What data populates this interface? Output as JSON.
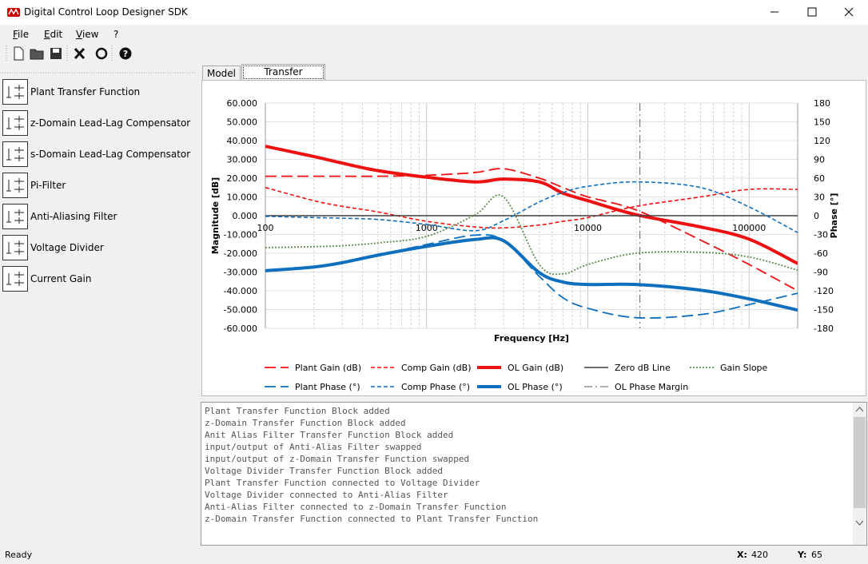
{
  "window": {
    "title": "Digital Control Loop Designer SDK"
  },
  "menu": [
    "File",
    "Edit",
    "View",
    "?"
  ],
  "blocks": [
    "Plant Transfer Function",
    "z-Domain Lead-Lag Compensator",
    "s-Domain Lead-Lag Compensator",
    "Pi-Filter",
    "Anti-Aliasing Filter",
    "Voltage Divider",
    "Current Gain"
  ],
  "tabs": [
    "Model",
    "Transfer Function"
  ],
  "chart_data": {
    "type": "line",
    "xlabel": "Frequency [Hz]",
    "ylabel": "Magnitude [dB]",
    "y2label": "Phase [°]",
    "xscale": "log",
    "xlim": [
      100,
      200000
    ],
    "xticks": [
      100,
      1000,
      10000,
      100000
    ],
    "x_minor_ticks": [
      200,
      300,
      400,
      500,
      600,
      700,
      800,
      900,
      2000,
      3000,
      4000,
      5000,
      6000,
      7000,
      8000,
      9000,
      20000,
      30000,
      40000,
      50000,
      60000,
      70000,
      80000,
      90000
    ],
    "ylim": [
      -60,
      60
    ],
    "yticks": [
      {
        "value": 60,
        "label": "60.000"
      },
      {
        "value": 50,
        "label": "50.000"
      },
      {
        "value": 40,
        "label": "40.000"
      },
      {
        "value": 30,
        "label": "30.000"
      },
      {
        "value": 20,
        "label": "20.000"
      },
      {
        "value": 10,
        "label": "10.000"
      },
      {
        "value": 0,
        "label": "0.000"
      },
      {
        "value": -10,
        "label": "-10.000"
      },
      {
        "value": -20,
        "label": "-20.000"
      },
      {
        "value": -30,
        "label": "-30.000"
      },
      {
        "value": -40,
        "label": "-40.000"
      },
      {
        "value": -50,
        "label": "-50.000"
      },
      {
        "value": -60,
        "label": "-60.000"
      }
    ],
    "y2lim": [
      -180,
      180
    ],
    "y2ticks": [
      180,
      150,
      120,
      90,
      60,
      30,
      0,
      -30,
      -60,
      -90,
      -120,
      -150,
      -180
    ],
    "grid": true,
    "x": [
      100,
      200,
      300,
      500,
      1000,
      2000,
      3000,
      5000,
      7000,
      10000,
      20000,
      50000,
      100000,
      200000
    ],
    "series": [
      {
        "name": "Plant Gain (dB)",
        "color": "#ee1111",
        "line_style": "long-dash",
        "values": [
          21,
          21,
          21,
          21,
          21.5,
          23,
          25,
          20,
          15,
          10,
          3,
          -13,
          -26,
          -40
        ]
      },
      {
        "name": "Comp Gain (dB)",
        "color": "#ee1111",
        "line_style": "short-dash",
        "values": [
          15,
          8,
          5,
          2,
          -3,
          -6,
          -6.5,
          -5,
          -3,
          -1,
          5,
          10,
          14,
          14
        ]
      },
      {
        "name": "OL Gain (dB)",
        "color": "#ee1111",
        "line_style": "thick",
        "values": [
          37,
          31.5,
          28,
          24,
          20.5,
          18,
          19.5,
          18,
          12,
          8,
          0.5,
          -6,
          -12.5,
          -25.5
        ]
      },
      {
        "name": "Zero dB Line",
        "color": "#404040",
        "line_style": "solid",
        "values": [
          0,
          0,
          0,
          0,
          0,
          0,
          0,
          0,
          0,
          0,
          0,
          0,
          0,
          0
        ]
      },
      {
        "name": "Gain Slope",
        "color": "#5e8c4a",
        "line_style": "dotted",
        "values": [
          -17,
          -16.5,
          -16,
          -14.5,
          -11,
          0.5,
          10,
          -26,
          -31,
          -26,
          -20,
          -19.5,
          -22,
          -29
        ]
      },
      {
        "name": "Plant Phase (°)",
        "color": "#0e6fbf",
        "line_style": "long-dash",
        "axis": "y2",
        "values": [
          -88,
          -82,
          -74,
          -63,
          -46,
          -31,
          -40,
          -97,
          -131,
          -148,
          -163,
          -158,
          -142,
          -124
        ]
      },
      {
        "name": "Comp Phase (°)",
        "color": "#0e6fbf",
        "line_style": "short-dash",
        "axis": "y2",
        "values": [
          -1,
          -3,
          -4,
          -6,
          -14,
          -24,
          -8,
          22,
          37,
          47,
          54,
          45,
          14,
          -27
        ]
      },
      {
        "name": "OL Phase (°)",
        "color": "#0e6fbf",
        "line_style": "thick",
        "axis": "y2",
        "values": [
          -88,
          -82,
          -75,
          -63,
          -49,
          -38,
          -40,
          -91,
          -106,
          -110,
          -110,
          -119,
          -133,
          -151
        ]
      }
    ],
    "phase_margin": {
      "name": "OL Phase Margin",
      "x": 21000,
      "color": "#808080",
      "line_style": "dash-dot"
    }
  },
  "log": [
    "Plant Transfer Function Block added",
    "z-Domain Transfer Function Block added",
    "Anit Alias Filter Transfer Function Block added",
    "input/output of Anti-Alias Filter swapped",
    "input/output of z-Domain Transfer Function swapped",
    "Voltage Divider Transfer Function Block added",
    "Plant Transfer Function connected to Voltage Divider",
    "Voltage Divider connected to Anti-Alias Filter",
    "Anti-Alias Filter connected to z-Domain Transfer Function",
    "z-Domain Transfer Function connected to Plant Transfer Function"
  ],
  "status": {
    "text": "Ready",
    "x_label": "X:",
    "x_value": 420,
    "y_label": "Y:",
    "y_value": 65
  }
}
